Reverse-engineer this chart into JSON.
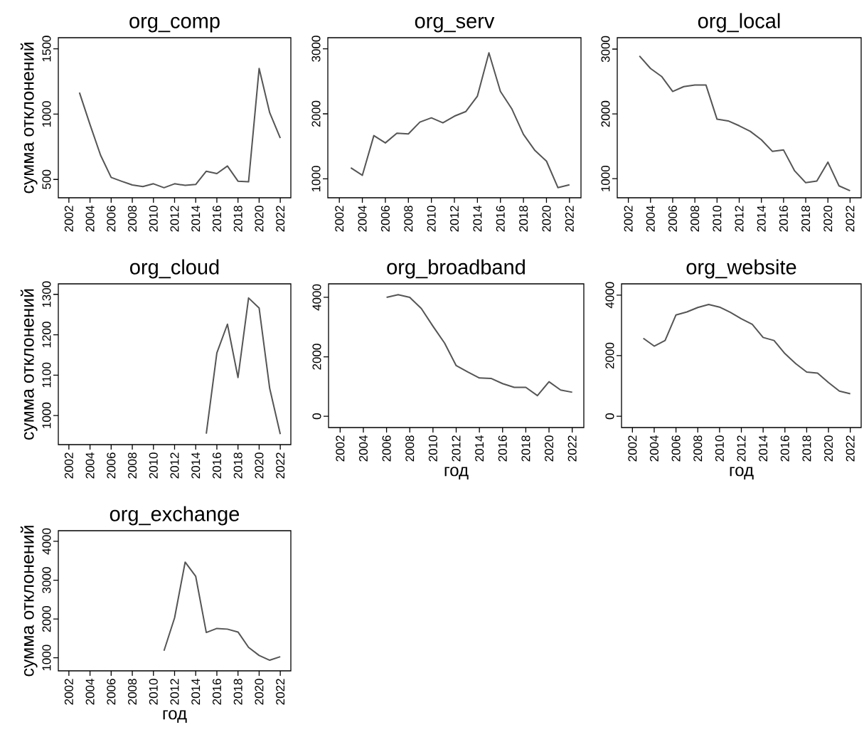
{
  "chart_data": [
    {
      "type": "line",
      "title": "org_comp",
      "ylabel": "сумма отклонений",
      "color": "#555555",
      "xlim": [
        2001,
        2023
      ],
      "xticks": [
        2002,
        2004,
        2006,
        2008,
        2010,
        2012,
        2014,
        2016,
        2018,
        2020,
        2022
      ],
      "ylim": [
        360,
        1585
      ],
      "yticks": [
        500,
        1000,
        1500
      ],
      "x": [
        2003,
        2004,
        2005,
        2006,
        2007,
        2008,
        2009,
        2010,
        2011,
        2012,
        2013,
        2014,
        2015,
        2016,
        2017,
        2018,
        2019,
        2020,
        2021,
        2022
      ],
      "values": [
        1165,
        920,
        685,
        516,
        486,
        458,
        446,
        467,
        437,
        467,
        455,
        462,
        563,
        545,
        603,
        487,
        482,
        1350,
        1011,
        817
      ]
    },
    {
      "type": "line",
      "title": "org_serv",
      "color": "#555555",
      "xlim": [
        2001,
        2023
      ],
      "xticks": [
        2002,
        2004,
        2006,
        2008,
        2010,
        2012,
        2014,
        2016,
        2018,
        2020,
        2022
      ],
      "ylim": [
        710,
        3170
      ],
      "yticks": [
        1000,
        2000,
        3000
      ],
      "x": [
        2003,
        2004,
        2005,
        2006,
        2007,
        2008,
        2009,
        2010,
        2011,
        2012,
        2013,
        2014,
        2015,
        2016,
        2017,
        2018,
        2019,
        2020,
        2021,
        2022
      ],
      "values": [
        1171,
        1055,
        1665,
        1553,
        1702,
        1691,
        1873,
        1938,
        1862,
        1964,
        2036,
        2273,
        2938,
        2345,
        2073,
        1684,
        1436,
        1273,
        865,
        909
      ]
    },
    {
      "type": "line",
      "title": "org_local",
      "color": "#555555",
      "xlim": [
        2001,
        2023
      ],
      "xticks": [
        2002,
        2004,
        2006,
        2008,
        2010,
        2012,
        2014,
        2016,
        2018,
        2020,
        2022
      ],
      "ylim": [
        706,
        3176
      ],
      "yticks": [
        1000,
        2000,
        3000
      ],
      "x": [
        2003,
        2004,
        2005,
        2006,
        2007,
        2008,
        2009,
        2010,
        2011,
        2012,
        2013,
        2014,
        2015,
        2016,
        2017,
        2018,
        2019,
        2020,
        2021,
        2022
      ],
      "values": [
        2895,
        2701,
        2578,
        2346,
        2421,
        2447,
        2447,
        1918,
        1892,
        1817,
        1731,
        1600,
        1421,
        1443,
        1121,
        938,
        964,
        1256,
        890,
        815
      ]
    },
    {
      "type": "line",
      "title": "org_cloud",
      "ylabel": "сумма отклонений",
      "color": "#555555",
      "xlim": [
        2001,
        2023
      ],
      "xticks": [
        2002,
        2004,
        2006,
        2008,
        2010,
        2012,
        2014,
        2016,
        2018,
        2020,
        2022
      ],
      "ylim": [
        928,
        1326
      ],
      "yticks": [
        1000,
        1100,
        1200,
        1300
      ],
      "x": [
        2015,
        2016,
        2017,
        2018,
        2019,
        2020,
        2021,
        2022
      ],
      "values": [
        955,
        1155,
        1226,
        1094,
        1291,
        1266,
        1067,
        954
      ]
    },
    {
      "type": "line",
      "title": "org_broadband",
      "xlabel": "год",
      "color": "#555555",
      "xlim": [
        2001,
        2023
      ],
      "xticks": [
        2002,
        2004,
        2006,
        2008,
        2010,
        2012,
        2014,
        2016,
        2018,
        2020,
        2022
      ],
      "ylim": [
        -379,
        4454
      ],
      "yticks": [
        0,
        2000,
        4000
      ],
      "x": [
        2006,
        2007,
        2008,
        2009,
        2010,
        2011,
        2012,
        2013,
        2014,
        2015,
        2016,
        2017,
        2018,
        2019,
        2020,
        2021,
        2022
      ],
      "values": [
        4000,
        4088,
        4000,
        3621,
        3028,
        2461,
        1703,
        1489,
        1287,
        1274,
        1098,
        972,
        972,
        694,
        1161,
        883,
        808
      ]
    },
    {
      "type": "line",
      "title": "org_website",
      "xlabel": "год",
      "color": "#555555",
      "xlim": [
        2001,
        2023
      ],
      "xticks": [
        2002,
        2004,
        2006,
        2008,
        2010,
        2012,
        2014,
        2016,
        2018,
        2020,
        2022
      ],
      "ylim": [
        -372,
        4371
      ],
      "yticks": [
        0,
        2000,
        4000
      ],
      "x": [
        2003,
        2004,
        2005,
        2006,
        2007,
        2008,
        2009,
        2010,
        2011,
        2012,
        2013,
        2014,
        2015,
        2016,
        2017,
        2018,
        2019,
        2020,
        2021,
        2022
      ],
      "values": [
        2576,
        2316,
        2502,
        3344,
        3443,
        3591,
        3690,
        3604,
        3431,
        3220,
        3034,
        2601,
        2502,
        2068,
        1734,
        1461,
        1424,
        1115,
        830,
        743
      ]
    },
    {
      "type": "line",
      "title": "org_exchange",
      "ylabel": "сумма отклонений",
      "xlabel": "год",
      "color": "#555555",
      "xlim": [
        2001,
        2023
      ],
      "xticks": [
        2002,
        2004,
        2006,
        2008,
        2010,
        2012,
        2014,
        2016,
        2018,
        2020,
        2022
      ],
      "ylim": [
        665,
        4274
      ],
      "yticks": [
        1000,
        2000,
        3000,
        4000
      ],
      "x": [
        2011,
        2012,
        2013,
        2014,
        2015,
        2016,
        2017,
        2018,
        2019,
        2020,
        2021,
        2022
      ],
      "values": [
        1183,
        2030,
        3464,
        3098,
        1653,
        1757,
        1739,
        1665,
        1269,
        1061,
        939,
        1030
      ]
    }
  ]
}
